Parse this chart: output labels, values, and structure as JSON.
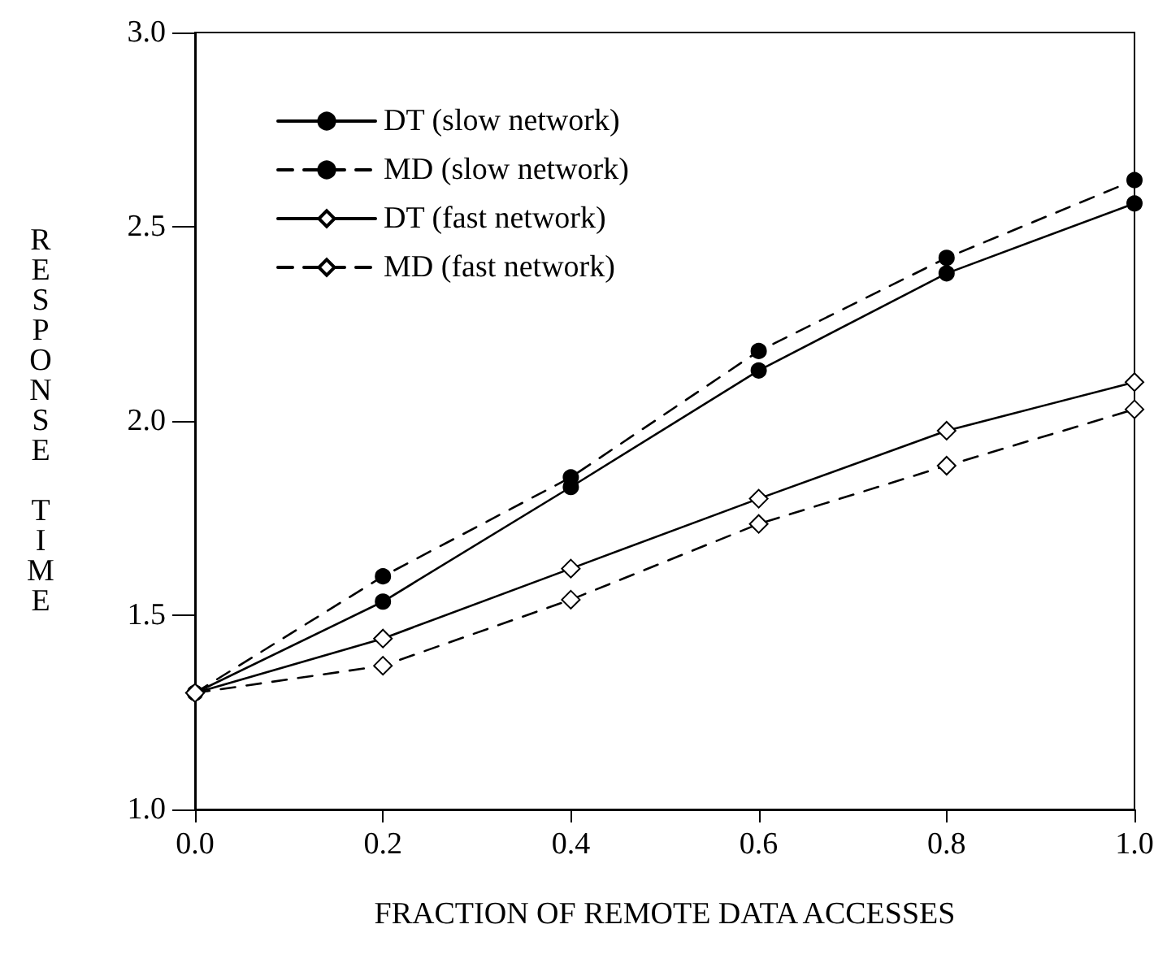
{
  "chart_data": {
    "type": "line",
    "xlabel": "FRACTION OF REMOTE DATA ACCESSES",
    "ylabel": "RESPONSE TIME",
    "x": [
      0,
      0.2,
      0.4,
      0.6,
      0.8,
      1.0
    ],
    "series": [
      {
        "name": "DT (slow network)",
        "color": "#000000",
        "marker": "circle",
        "line_style": "solid",
        "values": [
          1.3,
          1.535,
          1.83,
          2.13,
          2.38,
          2.56
        ]
      },
      {
        "name": "MD (slow network)",
        "color": "#000000",
        "marker": "circle",
        "line_style": "dashed",
        "values": [
          1.3,
          1.6,
          1.855,
          2.18,
          2.42,
          2.62
        ]
      },
      {
        "name": "DT (fast network)",
        "color": "#000000",
        "marker": "diamond",
        "line_style": "solid",
        "values": [
          1.3,
          1.44,
          1.62,
          1.8,
          1.975,
          2.1
        ]
      },
      {
        "name": "MD (fast network)",
        "color": "#000000",
        "marker": "diamond",
        "line_style": "dashed",
        "values": [
          1.3,
          1.37,
          1.54,
          1.735,
          1.885,
          2.03
        ]
      }
    ],
    "xlim": [
      0,
      1.0
    ],
    "xticks": [
      {
        "value": 0,
        "label": "0.0"
      },
      0.2,
      0.4,
      0.6,
      0.8,
      {
        "value": 1,
        "label": "1.0"
      }
    ],
    "ylim": [
      1.0,
      3.0
    ],
    "yticks": [
      {
        "value": 1,
        "label": "1.0"
      },
      1.5,
      {
        "value": 2,
        "label": "2.0"
      },
      2.5,
      {
        "value": 3,
        "label": "3.0"
      }
    ],
    "grid": false,
    "legend": "top left"
  }
}
